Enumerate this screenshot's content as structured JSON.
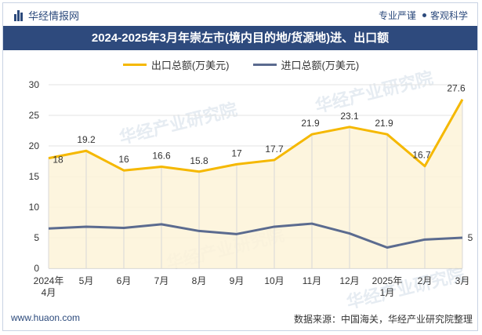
{
  "header": {
    "brand": "华经情报网",
    "tags": [
      "专业严谨",
      "客观科学"
    ]
  },
  "chart_data": {
    "type": "line",
    "title": "2024-2025年3月年崇左市(境内目的地/货源地)进、出口额",
    "categories": [
      "2024年\n4月",
      "5月",
      "6月",
      "7月",
      "8月",
      "9月",
      "10月",
      "11月",
      "12月",
      "2025年\n1月",
      "2月",
      "3月"
    ],
    "ylim": [
      0,
      30
    ],
    "yticks": [
      0,
      5,
      10,
      15,
      20,
      25,
      30
    ],
    "grid": true,
    "legend_position": "top-center",
    "series": [
      {
        "name": "出口总额(万美元)",
        "color": "#f5b800",
        "fill": "#fdf3d8",
        "values": [
          18,
          19.2,
          16,
          16.6,
          15.8,
          17,
          17.7,
          21.9,
          23.1,
          21.9,
          16.7,
          27.6
        ],
        "data_labels": [
          "18",
          "19.2",
          "16",
          "16.6",
          "15.8",
          "17",
          "17.7",
          "21.9",
          "23.1",
          "21.9",
          "16.7",
          "27.6"
        ]
      },
      {
        "name": "进口总额(万美元)",
        "color": "#5b6b8f",
        "values": [
          6.5,
          6.8,
          6.6,
          7.2,
          6.1,
          5.6,
          6.8,
          7.3,
          5.7,
          3.4,
          4.7,
          5
        ],
        "data_labels": [
          "",
          "",
          "",
          "",
          "",
          "",
          "",
          "",
          "",
          "",
          "",
          "5"
        ]
      }
    ]
  },
  "footer": {
    "website": "www.huaon.com",
    "source": "数据来源：中国海关，华经产业研究院整理"
  },
  "watermark": {
    "cn": "华经产业研究院",
    "en": "www.huaon.com"
  }
}
